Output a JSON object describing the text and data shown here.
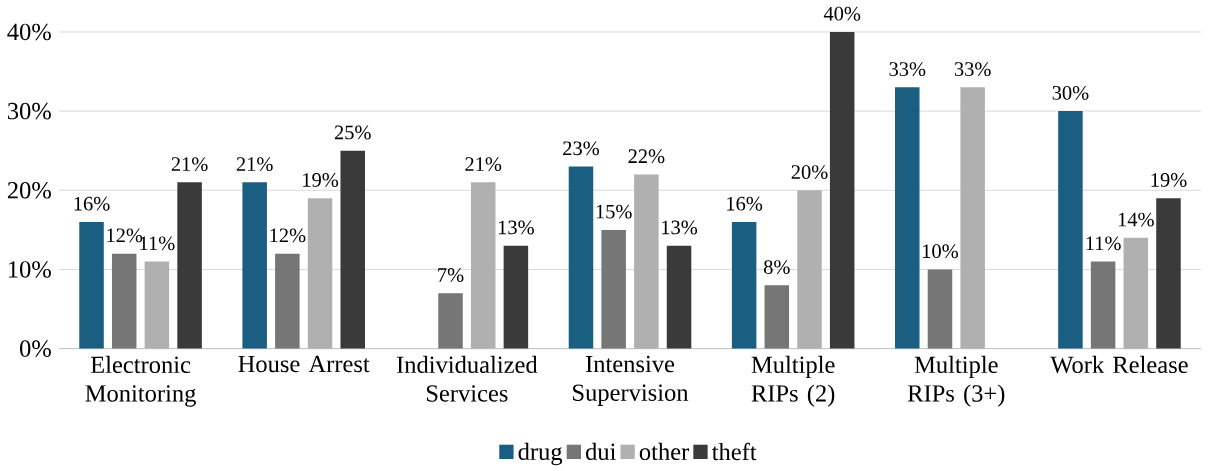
{
  "chart_data": {
    "type": "bar",
    "categories": [
      "Electronic Monitoring",
      "House Arrest",
      "Individualized Services",
      "Intensive Supervision",
      "Multiple RIPs (2)",
      "Multiple RIPs (3+)",
      "Work Release"
    ],
    "series": [
      {
        "name": "drug",
        "color": "#1a5e82",
        "values": [
          16,
          21,
          null,
          23,
          16,
          33,
          30
        ],
        "value_labels": [
          "16%",
          "21%",
          null,
          "23%",
          "16%",
          "33%",
          "30%"
        ]
      },
      {
        "name": "dui",
        "color": "#767676",
        "values": [
          12,
          12,
          7,
          15,
          8,
          10,
          11
        ],
        "value_labels": [
          "12%",
          "12%",
          "7%",
          "15%",
          "8%",
          "10%",
          "11%"
        ]
      },
      {
        "name": "other",
        "color": "#b0b0b0",
        "values": [
          11,
          19,
          21,
          22,
          20,
          33,
          14
        ],
        "value_labels": [
          "11%",
          "19%",
          "21%",
          "22%",
          "20%",
          "33%",
          "14%"
        ]
      },
      {
        "name": "theft",
        "color": "#3a3a3a",
        "values": [
          21,
          25,
          13,
          13,
          40,
          null,
          19
        ],
        "value_labels": [
          "21%",
          "25%",
          "13%",
          "13%",
          "40%",
          null,
          "19%"
        ]
      }
    ],
    "ylim": [
      0,
      40
    ],
    "yticks": [
      {
        "value": 0,
        "label": "0%"
      },
      {
        "value": 10,
        "label": "10%"
      },
      {
        "value": 20,
        "label": "20%"
      },
      {
        "value": 30,
        "label": "30%"
      },
      {
        "value": 40,
        "label": "40%"
      }
    ],
    "grid": "y",
    "legend": "bottom"
  }
}
